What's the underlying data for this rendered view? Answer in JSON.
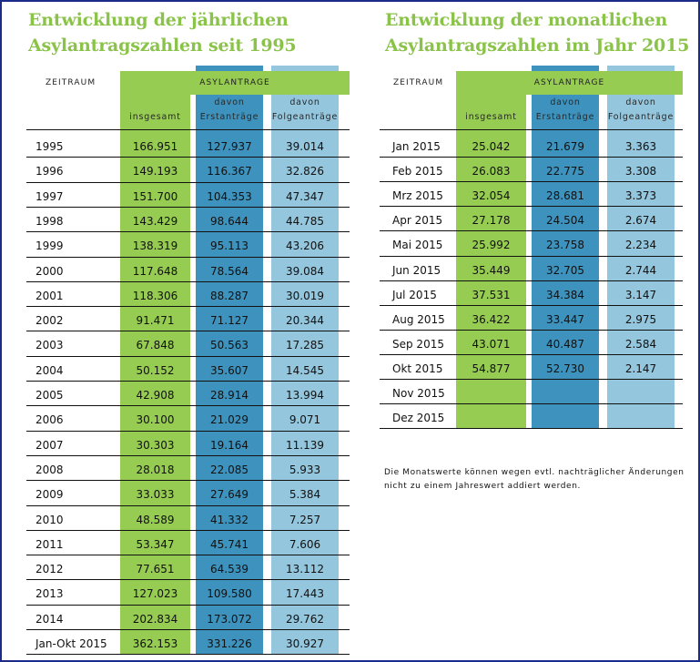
{
  "left": {
    "title_line1": "Entwicklung der jährlichen",
    "title_line2": "Asylantragszahlen seit 1995",
    "header_period": "ZEITRAUM",
    "header_group": "ASYLANTRAGE",
    "col1": "insgesamt",
    "col2_line1": "davon",
    "col2_line2": "Erstanträge",
    "col3_line1": "davon",
    "col3_line2": "Folgeanträge",
    "rows": [
      {
        "label": "1995",
        "total": "166.951",
        "first": "127.937",
        "follow": "39.014"
      },
      {
        "label": "1996",
        "total": "149.193",
        "first": "116.367",
        "follow": "32.826"
      },
      {
        "label": "1997",
        "total": "151.700",
        "first": "104.353",
        "follow": "47.347"
      },
      {
        "label": "1998",
        "total": "143.429",
        "first": "98.644",
        "follow": "44.785"
      },
      {
        "label": "1999",
        "total": "138.319",
        "first": "95.113",
        "follow": "43.206"
      },
      {
        "label": "2000",
        "total": "117.648",
        "first": "78.564",
        "follow": "39.084"
      },
      {
        "label": "2001",
        "total": "118.306",
        "first": "88.287",
        "follow": "30.019"
      },
      {
        "label": "2002",
        "total": "91.471",
        "first": "71.127",
        "follow": "20.344"
      },
      {
        "label": "2003",
        "total": "67.848",
        "first": "50.563",
        "follow": "17.285"
      },
      {
        "label": "2004",
        "total": "50.152",
        "first": "35.607",
        "follow": "14.545"
      },
      {
        "label": "2005",
        "total": "42.908",
        "first": "28.914",
        "follow": "13.994"
      },
      {
        "label": "2006",
        "total": "30.100",
        "first": "21.029",
        "follow": "9.071"
      },
      {
        "label": "2007",
        "total": "30.303",
        "first": "19.164",
        "follow": "11.139"
      },
      {
        "label": "2008",
        "total": "28.018",
        "first": "22.085",
        "follow": "5.933"
      },
      {
        "label": "2009",
        "total": "33.033",
        "first": "27.649",
        "follow": "5.384"
      },
      {
        "label": "2010",
        "total": "48.589",
        "first": "41.332",
        "follow": "7.257"
      },
      {
        "label": "2011",
        "total": "53.347",
        "first": "45.741",
        "follow": "7.606"
      },
      {
        "label": "2012",
        "total": "77.651",
        "first": "64.539",
        "follow": "13.112"
      },
      {
        "label": "2013",
        "total": "127.023",
        "first": "109.580",
        "follow": "17.443"
      },
      {
        "label": "2014",
        "total": "202.834",
        "first": "173.072",
        "follow": "29.762"
      },
      {
        "label": "Jan-Okt 2015",
        "total": "362.153",
        "first": "331.226",
        "follow": "30.927"
      }
    ]
  },
  "right": {
    "title_line1": "Entwicklung der monatlichen",
    "title_line2": "Asylantragszahlen im Jahr 2015",
    "header_period": "ZEITRAUM",
    "header_group": "ASYLANTRAGE",
    "col1": "insgesamt",
    "col2_line1": "davon",
    "col2_line2": "Erstanträge",
    "col3_line1": "davon",
    "col3_line2": "Folgeanträge",
    "rows": [
      {
        "label": "Jan 2015",
        "total": "25.042",
        "first": "21.679",
        "follow": "3.363"
      },
      {
        "label": "Feb 2015",
        "total": "26.083",
        "first": "22.775",
        "follow": "3.308"
      },
      {
        "label": "Mrz 2015",
        "total": "32.054",
        "first": "28.681",
        "follow": "3.373"
      },
      {
        "label": "Apr 2015",
        "total": "27.178",
        "first": "24.504",
        "follow": "2.674"
      },
      {
        "label": "Mai 2015",
        "total": "25.992",
        "first": "23.758",
        "follow": "2.234"
      },
      {
        "label": "Jun 2015",
        "total": "35.449",
        "first": "32.705",
        "follow": "2.744"
      },
      {
        "label": "Jul 2015",
        "total": "37.531",
        "first": "34.384",
        "follow": "3.147"
      },
      {
        "label": "Aug 2015",
        "total": "36.422",
        "first": "33.447",
        "follow": "2.975"
      },
      {
        "label": "Sep 2015",
        "total": "43.071",
        "first": "40.487",
        "follow": "2.584"
      },
      {
        "label": "Okt 2015",
        "total": "54.877",
        "first": "52.730",
        "follow": "2.147"
      },
      {
        "label": "Nov 2015",
        "total": "",
        "first": "",
        "follow": ""
      },
      {
        "label": "Dez 2015",
        "total": "",
        "first": "",
        "follow": ""
      }
    ],
    "note_line1": "Die Monatswerte können wegen evtl. nachträglicher Änderungen",
    "note_line2": "nicht zu einem Jahreswert addiert werden."
  }
}
